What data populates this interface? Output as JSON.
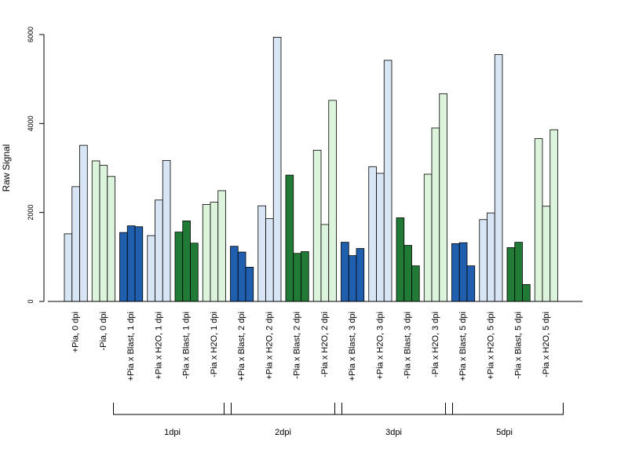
{
  "chart_data": {
    "type": "bar",
    "title": "",
    "xlabel": "",
    "ylabel": "Raw Signal",
    "ylim": [
      0,
      6000
    ],
    "yticks": [
      0,
      2000,
      4000,
      6000
    ],
    "grid": false,
    "categories": [
      "+Pia, 0 dpi",
      "-Pia, 0 dpi",
      "+Pia x Blast, 1 dpi",
      "+Pia x H2O, 1 dpi",
      "-Pia x Blast, 1 dpi",
      "-Pia x H2O, 1 dpi",
      "+Pia x Blast, 2 dpi",
      "+Pia x H2O, 2 dpi",
      "-Pia x Blast, 2 dpi",
      "-Pia x H2O, 2 dpi",
      "+Pia x Blast, 3 dpi",
      "+Pia x H2O, 3 dpi",
      "-Pia x Blast, 3 dpi",
      "-Pia x H2O, 3 dpi",
      "+Pia x Blast, 5 dpi",
      "+Pia x H2O, 5 dpi",
      "-Pia x Blast, 5 dpi",
      "-Pia x H2O, 5 dpi"
    ],
    "colors": [
      "#d7e5f4",
      "#dcf3dc",
      "#1f5fae",
      "#d7e5f4",
      "#217a35",
      "#dcf3dc",
      "#1f5fae",
      "#d7e5f4",
      "#217a35",
      "#dcf3dc",
      "#1f5fae",
      "#d7e5f4",
      "#217a35",
      "#dcf3dc",
      "#1f5fae",
      "#d7e5f4",
      "#217a35",
      "#dcf3dc"
    ],
    "replicates": [
      [
        1520,
        2580,
        3510
      ],
      [
        3160,
        3060,
        2810
      ],
      [
        1550,
        1700,
        1680
      ],
      [
        1480,
        2280,
        3170
      ],
      [
        1560,
        1810,
        1310
      ],
      [
        2180,
        2230,
        2490
      ],
      [
        1240,
        1110,
        770
      ],
      [
        2150,
        1860,
        5940
      ],
      [
        2840,
        1080,
        1120
      ],
      [
        3400,
        1730,
        4520
      ],
      [
        1330,
        1030,
        1190
      ],
      [
        3030,
        2880,
        5420
      ],
      [
        1880,
        1260,
        800
      ],
      [
        2860,
        3900,
        4670
      ],
      [
        1300,
        1320,
        800
      ],
      [
        1840,
        1990,
        5550
      ],
      [
        1210,
        1330,
        380
      ],
      [
        3660,
        2140,
        3860
      ]
    ],
    "groups": [
      {
        "label": "1dpi",
        "from": 2,
        "to": 5
      },
      {
        "label": "2dpi",
        "from": 6,
        "to": 9
      },
      {
        "label": "3dpi",
        "from": 10,
        "to": 13
      },
      {
        "label": "5dpi",
        "from": 14,
        "to": 17
      }
    ]
  }
}
